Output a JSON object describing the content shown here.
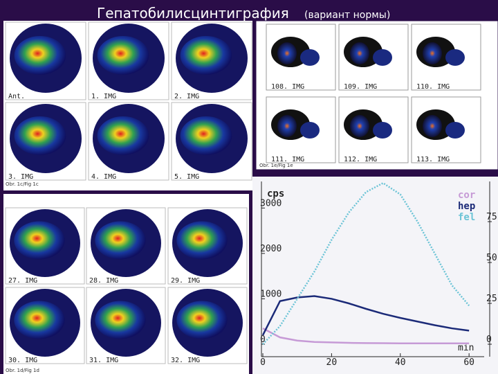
{
  "header": {
    "title": "Гепатобилисцинтиграфия",
    "subtitle": "(вариант нормы)"
  },
  "panels": [
    {
      "labels": [
        "Ant.",
        "1. IMG",
        "2. IMG",
        "3. IMG",
        "4. IMG",
        "5. IMG"
      ],
      "caption": "Obr. 1c/Fig 1c"
    },
    {
      "labels": [
        "108. IMG",
        "109. IMG",
        "110. IMG",
        "111. IMG",
        "112. IMG",
        "113. IMG"
      ],
      "caption": "Obr. 1e/Fig 1e"
    },
    {
      "labels": [
        "27. IMG",
        "28. IMG",
        "29. IMG",
        "30. IMG",
        "31. IMG",
        "32. IMG"
      ],
      "caption": "Obr. 1d/Fig 1d"
    }
  ],
  "chart": {
    "type": "line",
    "ylabel": "cps",
    "xlabel": "min",
    "x": [
      0,
      5,
      10,
      15,
      20,
      25,
      30,
      35,
      40,
      45,
      50,
      55,
      60
    ],
    "xlim": [
      0,
      65
    ],
    "xticks": [
      0,
      20,
      40,
      60
    ],
    "ylim": [
      0,
      3600
    ],
    "yticks": [
      0,
      1000,
      2000,
      3000
    ],
    "y2lim": [
      0,
      100
    ],
    "y2ticks": [
      0,
      25,
      50,
      75
    ],
    "series": [
      {
        "name": "cor",
        "color": "#c69ad6",
        "values": [
          350,
          150,
          80,
          50,
          40,
          30,
          25,
          22,
          20,
          20,
          20,
          20,
          20
        ]
      },
      {
        "name": "hep",
        "color": "#1b2a78",
        "values": [
          200,
          950,
          1030,
          1060,
          1000,
          900,
          780,
          670,
          580,
          500,
          420,
          350,
          300
        ]
      },
      {
        "name": "fel",
        "color": "#6cc4d6",
        "values": [
          0,
          400,
          1000,
          1600,
          2300,
          2900,
          3350,
          3550,
          3300,
          2700,
          2000,
          1300,
          850
        ]
      }
    ]
  }
}
